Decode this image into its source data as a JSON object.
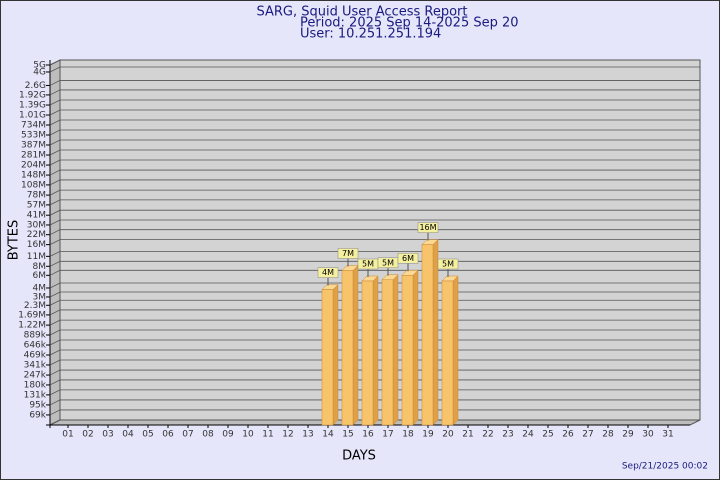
{
  "chart_data": {
    "type": "bar",
    "title": "SARG, Squid User Access Report",
    "subtitle": [
      "Period: 2025 Sep 14-2025 Sep 20",
      "User: 10.251.251.194"
    ],
    "xlabel": "DAYS",
    "ylabel": "BYTES",
    "footer": "Sep/21/2025 00:02",
    "categories": [
      "01",
      "02",
      "03",
      "04",
      "05",
      "06",
      "07",
      "08",
      "09",
      "10",
      "11",
      "12",
      "13",
      "14",
      "15",
      "16",
      "17",
      "18",
      "19",
      "20",
      "21",
      "22",
      "23",
      "24",
      "25",
      "26",
      "27",
      "28",
      "29",
      "30",
      "31"
    ],
    "values": [
      null,
      null,
      null,
      null,
      null,
      null,
      null,
      null,
      null,
      null,
      null,
      null,
      null,
      3800000,
      7000000,
      5000000,
      5200000,
      6000000,
      16000000,
      5000000,
      null,
      null,
      null,
      null,
      null,
      null,
      null,
      null,
      null,
      null,
      null
    ],
    "value_labels": [
      null,
      null,
      null,
      null,
      null,
      null,
      null,
      null,
      null,
      null,
      null,
      null,
      null,
      "4M",
      "7M",
      "5M",
      "5M",
      "6M",
      "16M",
      "5M",
      null,
      null,
      null,
      null,
      null,
      null,
      null,
      null,
      null,
      null,
      null
    ],
    "color": "#f7c46c",
    "log_scale": true,
    "grid": true,
    "ylim": [
      50000,
      5000000000
    ],
    "yticks": [
      {
        "value": 69000,
        "label": "69k"
      },
      {
        "value": 95000,
        "label": "95k"
      },
      {
        "value": 131000,
        "label": "131k"
      },
      {
        "value": 180000,
        "label": "180k"
      },
      {
        "value": 247000,
        "label": "247k"
      },
      {
        "value": 341000,
        "label": "341k"
      },
      {
        "value": 469000,
        "label": "469k"
      },
      {
        "value": 646000,
        "label": "646k"
      },
      {
        "value": 889000,
        "label": "889k"
      },
      {
        "value": 1220000,
        "label": "1.22M"
      },
      {
        "value": 1690000,
        "label": "1.69M"
      },
      {
        "value": 2300000,
        "label": "2.3M"
      },
      {
        "value": 3000000,
        "label": "3M"
      },
      {
        "value": 4000000,
        "label": "4M"
      },
      {
        "value": 6000000,
        "label": "6M"
      },
      {
        "value": 8000000,
        "label": "8M"
      },
      {
        "value": 11000000,
        "label": "11M"
      },
      {
        "value": 16000000,
        "label": "16M"
      },
      {
        "value": 22000000,
        "label": "22M"
      },
      {
        "value": 30000000,
        "label": "30M"
      },
      {
        "value": 41000000,
        "label": "41M"
      },
      {
        "value": 57000000,
        "label": "57M"
      },
      {
        "value": 78000000,
        "label": "78M"
      },
      {
        "value": 108000000,
        "label": "108M"
      },
      {
        "value": 148000000,
        "label": "148M"
      },
      {
        "value": 204000000,
        "label": "204M"
      },
      {
        "value": 281000000,
        "label": "281M"
      },
      {
        "value": 387000000,
        "label": "387M"
      },
      {
        "value": 533000000,
        "label": "533M"
      },
      {
        "value": 734000000,
        "label": "734M"
      },
      {
        "value": 1010000000,
        "label": "1.01G"
      },
      {
        "value": 1390000000,
        "label": "1.39G"
      },
      {
        "value": 1920000000,
        "label": "1.92G"
      },
      {
        "value": 2600000000,
        "label": "2.6G"
      },
      {
        "value": 4000000000,
        "label": "4G"
      },
      {
        "value": 5000000000,
        "label": "5G"
      }
    ]
  }
}
